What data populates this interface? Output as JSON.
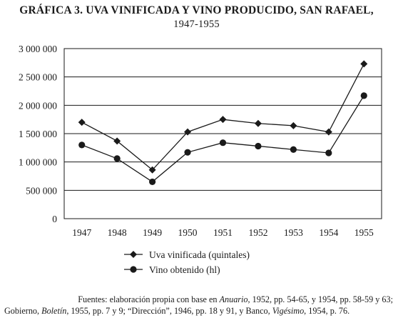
{
  "title_line1": "GRÁFICA 3. UVA VINIFICADA Y VINO PRODUCIDO, SAN RAFAEL,",
  "title_line2": "1947-1955",
  "source_line1_a": "Fuentes: elaboración propia con base en ",
  "source_line1_b": "Anuario",
  "source_line1_c": ", 1952, pp. 54-65, y 1954, pp. 58-59 y 63;",
  "source_line2_a": "Gobierno, ",
  "source_line2_b": "Boletín",
  "source_line2_c": ", 1955, pp. 7 y 9; “Dirección”, 1946, pp. 18 y 91, y Banco, ",
  "source_line2_d": "Vigésimo",
  "source_line2_e": ", 1954, p. 76.",
  "chart_data": {
    "type": "line",
    "title": "GRÁFICA 3. UVA VINIFICADA Y VINO PRODUCIDO, SAN RAFAEL, 1947-1955",
    "categories": [
      "1947",
      "1948",
      "1949",
      "1950",
      "1951",
      "1952",
      "1953",
      "1954",
      "1955"
    ],
    "yticks": [
      "0",
      "500 000",
      "1 000 000",
      "1 500 000",
      "2 000 000",
      "2 500 000",
      "3 000 000"
    ],
    "ylim": [
      0,
      3000000
    ],
    "grid": "horizontal",
    "legend_position": "bottom",
    "series": [
      {
        "name": "Uva vinificada (quintales)",
        "marker": "diamond",
        "values": [
          1700000,
          1370000,
          860000,
          1530000,
          1750000,
          1680000,
          1640000,
          1530000,
          2730000
        ]
      },
      {
        "name": "Vino obtenido (hl)",
        "marker": "circle",
        "values": [
          1300000,
          1060000,
          650000,
          1170000,
          1340000,
          1280000,
          1220000,
          1160000,
          2170000
        ]
      }
    ],
    "color": "#1a1a1a"
  }
}
